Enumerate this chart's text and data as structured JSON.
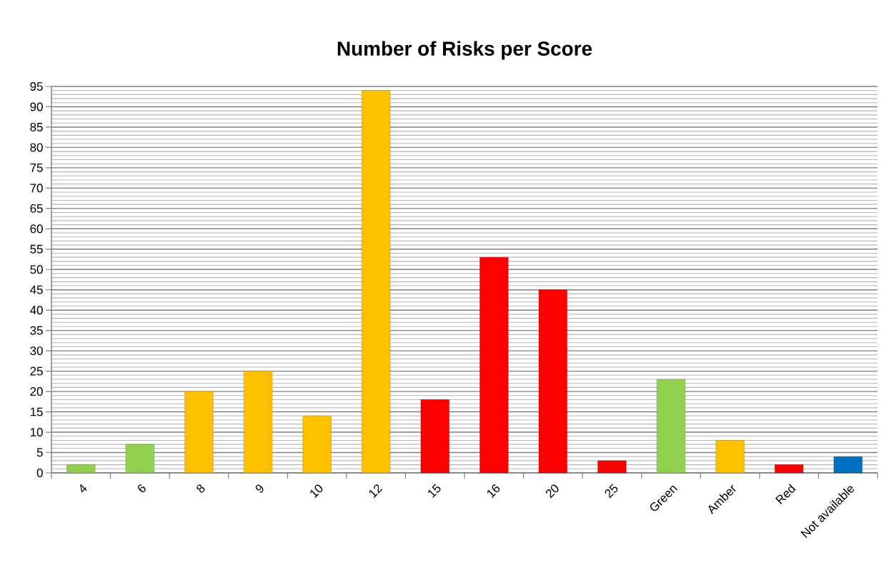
{
  "chart_data": {
    "type": "bar",
    "title": "Number of Risks per Score",
    "categories": [
      "4",
      "6",
      "8",
      "9",
      "10",
      "12",
      "15",
      "16",
      "20",
      "25",
      "Green",
      "Amber",
      "Red",
      "Not available"
    ],
    "values": [
      2,
      7,
      20,
      25,
      14,
      94,
      18,
      53,
      45,
      3,
      23,
      8,
      2,
      4
    ],
    "colors": [
      "#92d050",
      "#92d050",
      "#ffc000",
      "#ffc000",
      "#ffc000",
      "#ffc000",
      "#ff0000",
      "#ff0000",
      "#ff0000",
      "#ff0000",
      "#92d050",
      "#ffc000",
      "#ff0000",
      "#0070c0"
    ],
    "ylim": [
      0,
      95
    ],
    "yticks": [
      0,
      5,
      10,
      15,
      20,
      25,
      30,
      35,
      40,
      45,
      50,
      55,
      60,
      65,
      70,
      75,
      80,
      85,
      90,
      95
    ],
    "grid": "y"
  }
}
